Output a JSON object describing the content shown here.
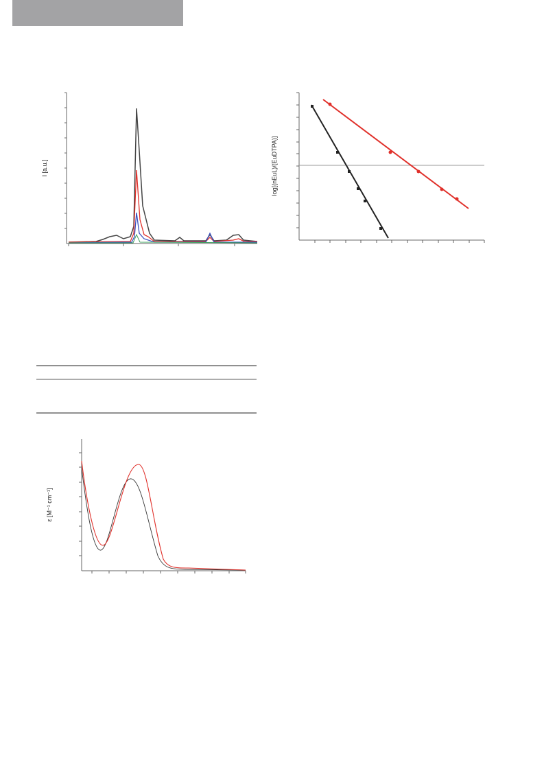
{
  "figure_1": {
    "y_label": "I [a.u.]"
  },
  "figure_2": {
    "y_label": "log[(nEuL)/(EuDTPA)]"
  },
  "figure_3": {
    "y_label": "ε [M⁻¹ cm⁻¹]"
  }
}
